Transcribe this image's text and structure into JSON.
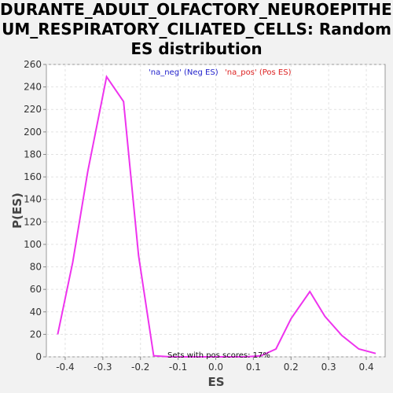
{
  "title_lines": [
    "DURANTE_ADULT_OLFACTORY_NEUROEPITHELI",
    "UM_RESPIRATORY_CILIATED_CELLS: Random",
    "ES distribution"
  ],
  "chart_data": {
    "type": "line",
    "xlabel": "ES",
    "ylabel": "P(ES)",
    "xlim": [
      -0.45,
      0.45
    ],
    "ylim": [
      0,
      260
    ],
    "x_ticks": [
      -0.4,
      -0.3,
      -0.2,
      -0.1,
      0.0,
      0.1,
      0.2,
      0.3,
      0.4
    ],
    "x_tick_labels": [
      "-0.4",
      "-0.3",
      "-0.2",
      "-0.1",
      "0.0",
      "0.1",
      "0.2",
      "0.3",
      "0.4"
    ],
    "y_ticks": [
      0,
      20,
      40,
      60,
      80,
      100,
      120,
      140,
      160,
      180,
      200,
      220,
      240,
      260
    ],
    "grid": true,
    "legend": [
      {
        "label": "'na_neg' (Neg ES)",
        "color": "#2222cc"
      },
      {
        "label": "'na_pos' (Pos ES)",
        "color": "#dd2222"
      }
    ],
    "annotation": "Sets with pos scores: 17%",
    "line_color": "#ee33ee",
    "series": [
      {
        "x": [
          -0.42,
          -0.38,
          -0.34,
          -0.29,
          -0.245,
          -0.205,
          -0.165,
          -0.12,
          -0.08,
          -0.04,
          0.0,
          0.04,
          0.08,
          0.12,
          0.16,
          0.2,
          0.25,
          0.29,
          0.335,
          0.38,
          0.425
        ],
        "y": [
          20,
          84,
          165,
          249,
          227,
          90,
          1,
          0,
          0,
          0,
          0,
          0,
          0,
          1,
          7,
          34,
          58,
          36,
          19,
          7,
          3
        ]
      }
    ]
  }
}
